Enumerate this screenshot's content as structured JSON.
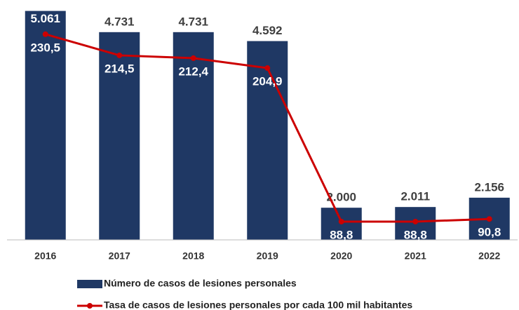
{
  "chart_data": {
    "type": "bar+line",
    "categories": [
      "2016",
      "2017",
      "2018",
      "2019",
      "2020",
      "2021",
      "2022"
    ],
    "series": [
      {
        "name": "Número de casos de lesiones personales",
        "type": "bar",
        "color": "#1f3864",
        "axis": "y",
        "values": [
          5061,
          4731,
          4731,
          4592,
          2000,
          2011,
          2156
        ],
        "value_labels": [
          "5.061",
          "4.731",
          "4.731",
          "4.592",
          "2.000",
          "2.011",
          "2.156"
        ]
      },
      {
        "name": "Tasa de casos de lesiones personales por cada 100 mil habitantes",
        "type": "line",
        "color": "#cc0000",
        "axis": "y2",
        "values": [
          230.5,
          214.5,
          212.4,
          204.9,
          88.8,
          88.8,
          90.8
        ],
        "value_labels": [
          "230,5",
          "214,5",
          "212,4",
          "204,9",
          "88,8",
          "88,8",
          "90,8"
        ]
      }
    ],
    "ylim": [
      1500,
      5100
    ],
    "y2lim": [
      75,
      250
    ],
    "legend": "bottom"
  }
}
